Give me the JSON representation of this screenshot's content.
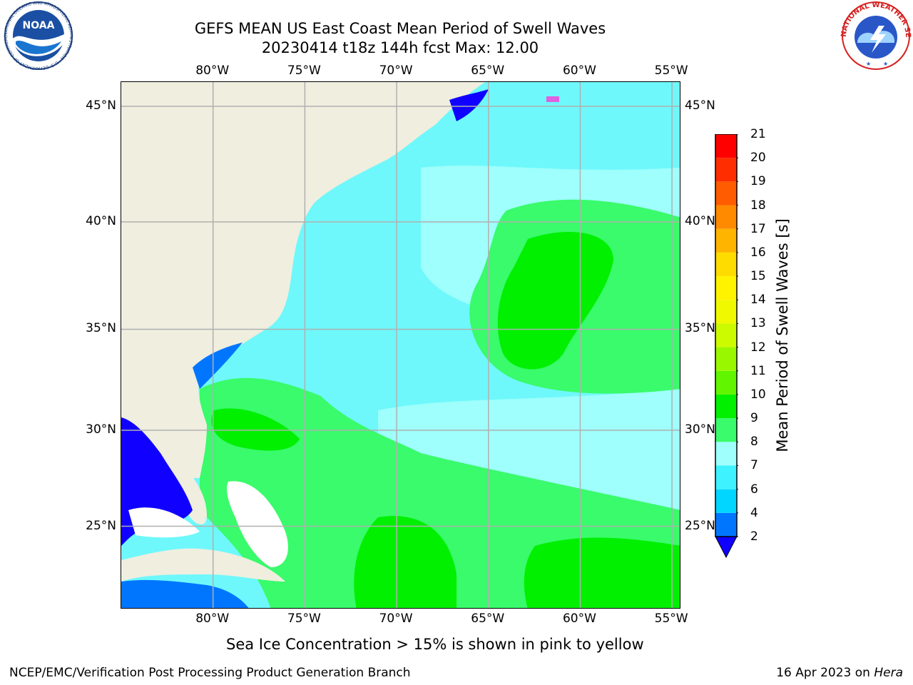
{
  "title": {
    "line1": "GEFS MEAN US East Coast Mean Period of Swell Waves",
    "line2": "20230414 t18z 144h fcst   Max: 12.00"
  },
  "map": {
    "lon_labels": [
      "80°W",
      "75°W",
      "70°W",
      "65°W",
      "60°W",
      "55°W"
    ],
    "lat_labels": [
      "45°N",
      "40°N",
      "35°N",
      "30°N",
      "25°N"
    ],
    "lon_values": [
      -80,
      -75,
      -70,
      -65,
      -60,
      -55
    ],
    "lat_values": [
      45,
      40,
      35,
      30,
      25
    ],
    "lon_range": [
      -85,
      -54.5
    ],
    "lat_range": [
      20.5,
      46
    ],
    "land_color": "#efeedf",
    "grid_color": "#b0b0b0"
  },
  "colorbar": {
    "label": "Mean Period of Swell Waves [s]",
    "ticks": [
      "2",
      "4",
      "6",
      "7",
      "8",
      "9",
      "10",
      "11",
      "12",
      "13",
      "14",
      "15",
      "16",
      "17",
      "18",
      "19",
      "20",
      "21"
    ],
    "colors": [
      "#0076ff",
      "#00d6ff",
      "#3ef2ff",
      "#9efffc",
      "#39fb6b",
      "#00f000",
      "#61f500",
      "#99f700",
      "#ccfb00",
      "#f0f900",
      "#fff300",
      "#ffdc00",
      "#ffb400",
      "#ff8a00",
      "#ff5b00",
      "#ff2d00",
      "#ff0000"
    ],
    "under_color": "#1000ff"
  },
  "note": "Sea Ice Concentration > 15% is shown in pink to yellow",
  "footer": {
    "left": "NCEP/EMC/Verification Post Processing Product Generation Branch",
    "right_date": "16 Apr 2023 on ",
    "right_host": "Hera"
  },
  "logos": {
    "noaa_text": "NOAA",
    "noaa_ring": "NATIONAL OCEANIC AND ATMOSPHERIC ADMINISTRATION · U.S. DEPARTMENT OF COMMERCE",
    "nws_ring": "NATIONAL WEATHER SERVICE"
  }
}
